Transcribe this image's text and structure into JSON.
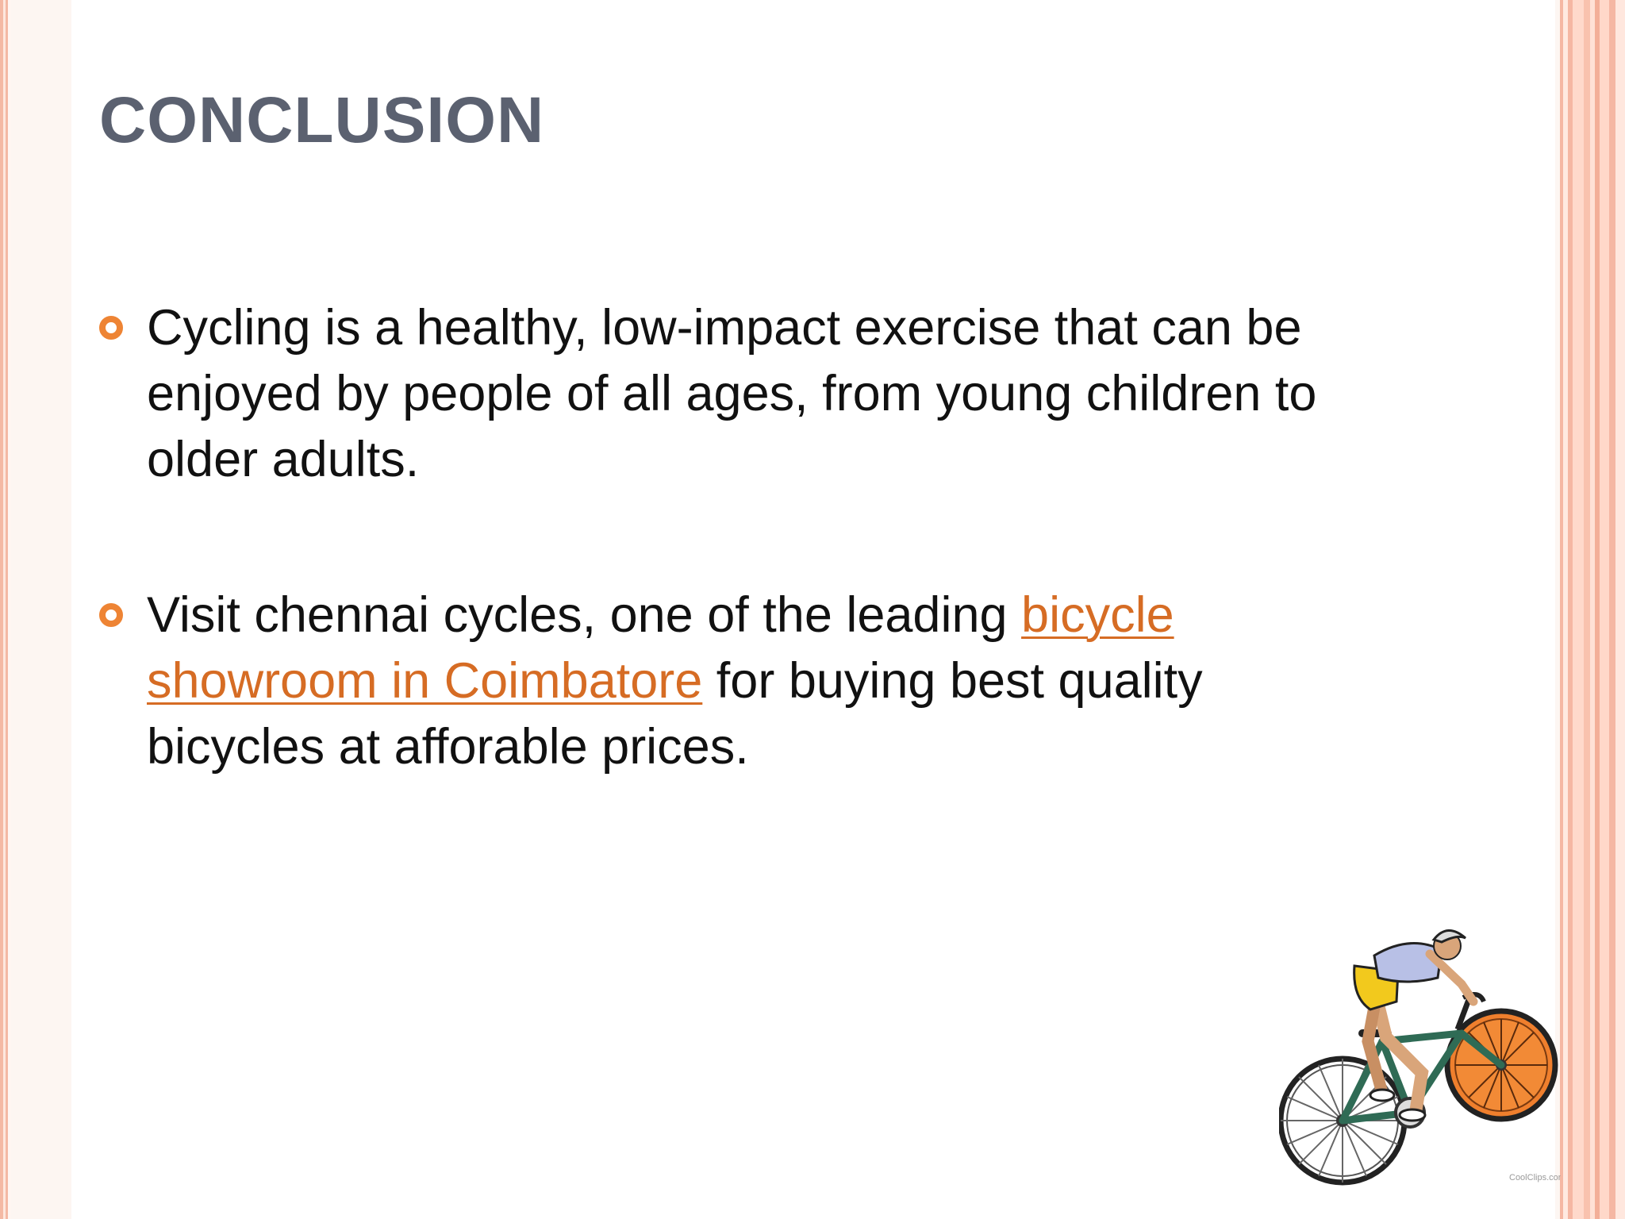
{
  "slide": {
    "title": "CONCLUSION",
    "bullets": [
      {
        "text": "Cycling is a healthy, low-impact exercise that can be enjoyed by people of all ages, from young children to older adults."
      },
      {
        "text_before_link": "Visit chennai cycles, one of the leading ",
        "link_text": "bicycle showroom in Coimbatore",
        "text_after_link": " for buying best quality bicycles at afforable prices."
      }
    ],
    "image": {
      "icon": "cyclist-clipart",
      "credit": "CoolClips.com"
    }
  },
  "colors": {
    "title": "#5b6170",
    "bullet_marker": "#ee8434",
    "link": "#d66c24",
    "border": "#f5b7a3"
  }
}
